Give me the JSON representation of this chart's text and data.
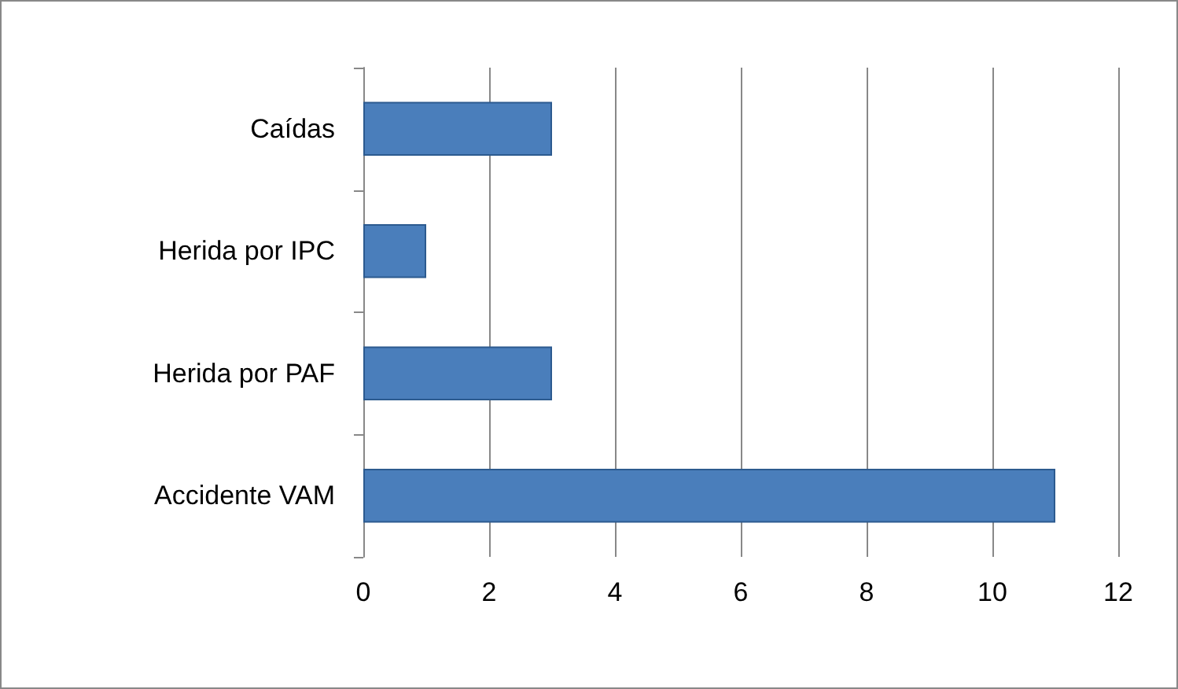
{
  "chart_data": {
    "type": "bar",
    "orientation": "horizontal",
    "categories": [
      "Caídas",
      "Herida por IPC",
      "Herida por PAF",
      "Accidente VAM"
    ],
    "values": [
      3,
      1,
      3,
      11
    ],
    "color": "#4a7ebb",
    "xlim": [
      0,
      12
    ],
    "xticks": [
      0,
      2,
      4,
      6,
      8,
      10,
      12
    ],
    "grid": "x"
  }
}
